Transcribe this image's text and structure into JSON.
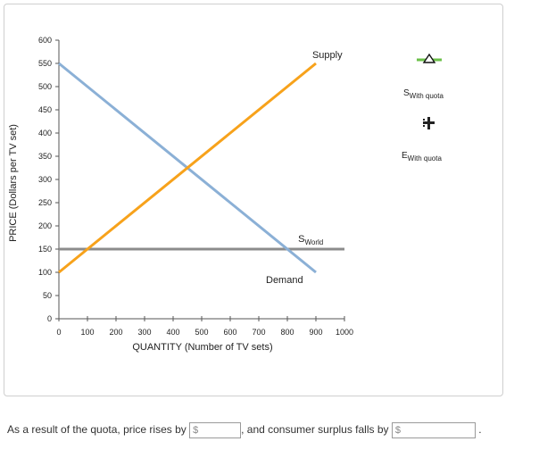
{
  "chart_data": {
    "type": "line",
    "xlabel": "QUANTITY (Number of TV sets)",
    "ylabel": "PRICE (Dollars per TV set)",
    "xlim": [
      0,
      1000
    ],
    "ylim": [
      0,
      600
    ],
    "xticks": [
      0,
      100,
      200,
      300,
      400,
      500,
      600,
      700,
      800,
      900,
      1000
    ],
    "yticks": [
      0,
      50,
      100,
      150,
      200,
      250,
      300,
      350,
      400,
      450,
      500,
      550,
      600
    ],
    "series": [
      {
        "name": "Demand",
        "color": "#8bb0d6",
        "x": [
          0,
          900
        ],
        "y": [
          550,
          100
        ]
      },
      {
        "name": "Supply",
        "color": "#f7a21b",
        "x": [
          0,
          900
        ],
        "y": [
          100,
          550
        ]
      },
      {
        "name": "S_World",
        "color": "#8c8c8c",
        "x": [
          0,
          1000
        ],
        "y": [
          150,
          150
        ]
      }
    ],
    "labels": {
      "supply": "Supply",
      "demand": "Demand",
      "world_main": "S",
      "world_sub": "World"
    }
  },
  "legend": {
    "s_with_quota": {
      "main": "S",
      "sub": "With quota",
      "color": "#6cc04a",
      "icon": "triangle-icon"
    },
    "e_with_quota": {
      "main": "E",
      "sub": "With quota",
      "color": "#222222",
      "icon": "plus-icon"
    }
  },
  "question": {
    "part1": "As a result of the quota, price rises by",
    "part2": ", and consumer surplus falls by",
    "end": ".",
    "currency": "$",
    "price_rise_value": "",
    "cs_fall_value": ""
  }
}
